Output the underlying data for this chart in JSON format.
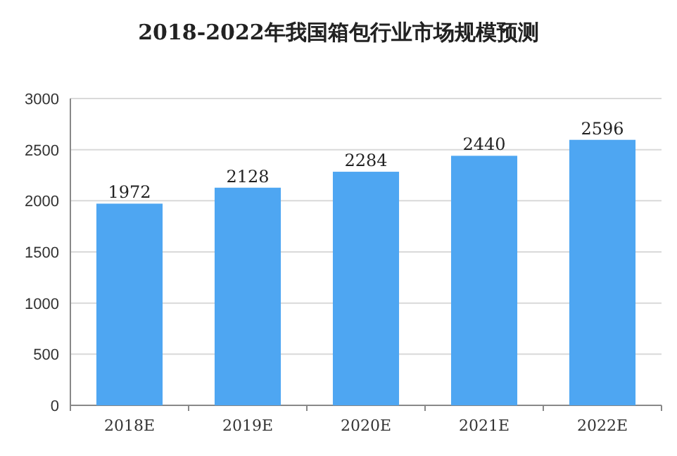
{
  "chart_data": {
    "type": "bar",
    "title": "2018-2022年我国箱包行业市场规模预测",
    "categories": [
      "2018E",
      "2019E",
      "2020E",
      "2021E",
      "2022E"
    ],
    "values": [
      1972,
      2128,
      2284,
      2440,
      2596
    ],
    "color": "#4ea6f2",
    "ylim": [
      0,
      3000
    ],
    "yticks": [
      0,
      500,
      1000,
      1500,
      2000,
      2500,
      3000
    ],
    "grid": "y",
    "data_labels": true
  }
}
